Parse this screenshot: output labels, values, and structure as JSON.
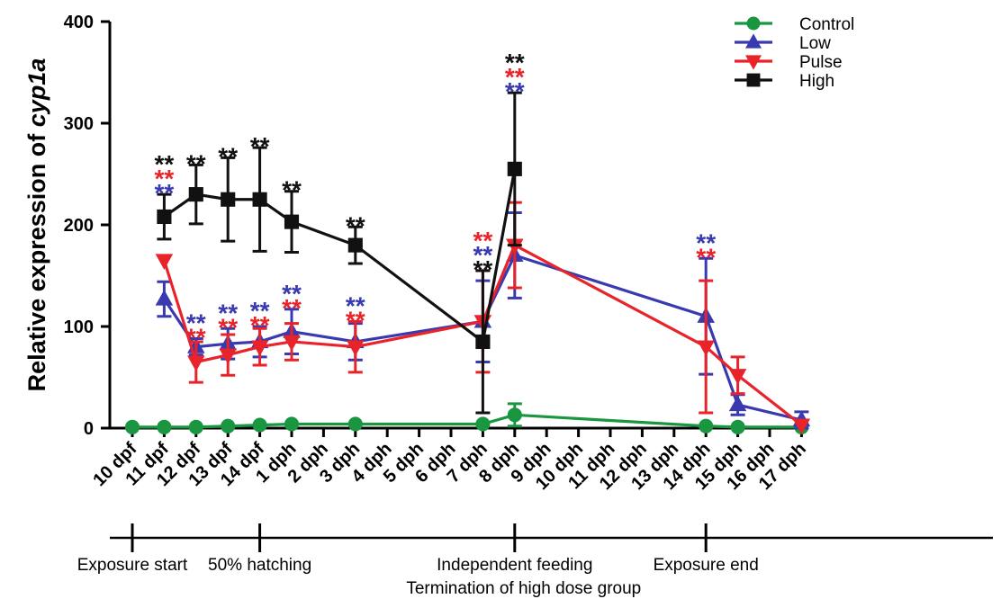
{
  "chart_data": {
    "type": "line",
    "ylabel_prefix": "Relative expression of ",
    "ylabel_gene": "cyp1a",
    "ylim": [
      0,
      400
    ],
    "yticks": [
      "0",
      "100",
      "200",
      "300",
      "400"
    ],
    "categories": [
      "10 dpf",
      "11 dpf",
      "12 dpf",
      "13 dpf",
      "14 dpf",
      "1 dph",
      "2 dph",
      "3 dph",
      "4 dph",
      "5 dph",
      "6 dph",
      "7 dph",
      "8 dph",
      "9 dph",
      "10 dph",
      "11 dph",
      "12 dph",
      "13 dph",
      "14 dph",
      "15 dph",
      "16 dph",
      "17 dph"
    ],
    "legend_position": "top-right",
    "series": [
      {
        "name": "Control",
        "color": "#1a9641",
        "marker": "circle",
        "points": [
          [
            0,
            1,
            0
          ],
          [
            1,
            1,
            0
          ],
          [
            2,
            1,
            0
          ],
          [
            3,
            2,
            0
          ],
          [
            4,
            3,
            0
          ],
          [
            5,
            4,
            0
          ],
          [
            7,
            4,
            0
          ],
          [
            11,
            4,
            0
          ],
          [
            12,
            13,
            11
          ],
          [
            18,
            2,
            0
          ],
          [
            19,
            1,
            0
          ],
          [
            21,
            1,
            0
          ]
        ]
      },
      {
        "name": "Low",
        "color": "#3a3ab0",
        "marker": "triangle-up",
        "points": [
          [
            1,
            127,
            17
          ],
          [
            2,
            80,
            8
          ],
          [
            3,
            83,
            15
          ],
          [
            4,
            85,
            15
          ],
          [
            5,
            95,
            22
          ],
          [
            7,
            85,
            18
          ],
          [
            11,
            105,
            40
          ],
          [
            12,
            170,
            42
          ],
          [
            18,
            110,
            57
          ],
          [
            19,
            23,
            10
          ],
          [
            21,
            8,
            8
          ]
        ]
      },
      {
        "name": "Pulse",
        "color": "#e8232a",
        "marker": "triangle-down",
        "points": [
          [
            1,
            165,
            0
          ],
          [
            2,
            65,
            20
          ],
          [
            3,
            72,
            20
          ],
          [
            4,
            80,
            18
          ],
          [
            5,
            85,
            18
          ],
          [
            7,
            80,
            25
          ],
          [
            11,
            105,
            50
          ],
          [
            12,
            180,
            42
          ],
          [
            18,
            80,
            65
          ],
          [
            19,
            52,
            18
          ],
          [
            21,
            3,
            0
          ]
        ]
      },
      {
        "name": "High",
        "color": "#111111",
        "marker": "square",
        "points": [
          [
            1,
            208,
            22
          ],
          [
            2,
            230,
            29
          ],
          [
            3,
            225,
            41
          ],
          [
            4,
            225,
            51
          ],
          [
            5,
            203,
            30
          ],
          [
            7,
            180,
            18
          ],
          [
            11,
            85,
            70
          ],
          [
            12,
            255,
            75
          ]
        ]
      }
    ],
    "annotations": [
      {
        "x": 1,
        "stars": [
          [
            "**",
            "#111111"
          ],
          [
            "**",
            "#e8232a"
          ],
          [
            "**",
            "#3a3ab0"
          ]
        ]
      },
      {
        "x": 2,
        "stars": [
          [
            "**",
            "#111111"
          ]
        ]
      },
      {
        "x": 3,
        "stars": [
          [
            "**",
            "#111111"
          ]
        ]
      },
      {
        "x": 4,
        "stars": [
          [
            "**",
            "#111111"
          ]
        ]
      },
      {
        "x": 5,
        "stars": [
          [
            "**",
            "#111111"
          ]
        ]
      },
      {
        "x": 7,
        "stars": [
          [
            "**",
            "#111111"
          ]
        ]
      },
      {
        "x": 12,
        "stars": [
          [
            "**",
            "#111111"
          ],
          [
            "**",
            "#e8232a"
          ],
          [
            "**",
            "#3a3ab0"
          ]
        ]
      },
      {
        "x": 11,
        "stars": [
          [
            "**",
            "#e8232a"
          ],
          [
            "**",
            "#3a3ab0"
          ],
          [
            "**",
            "#111111"
          ]
        ]
      },
      {
        "x": 2,
        "low": true,
        "stars": [
          [
            "**",
            "#3a3ab0"
          ],
          [
            "**",
            "#e8232a"
          ]
        ]
      },
      {
        "x": 3,
        "low": true,
        "stars": [
          [
            "**",
            "#3a3ab0"
          ],
          [
            "**",
            "#e8232a"
          ]
        ]
      },
      {
        "x": 4,
        "low": true,
        "stars": [
          [
            "**",
            "#3a3ab0"
          ],
          [
            "**",
            "#e8232a"
          ]
        ]
      },
      {
        "x": 5,
        "low": true,
        "stars": [
          [
            "**",
            "#3a3ab0"
          ],
          [
            "**",
            "#e8232a"
          ]
        ]
      },
      {
        "x": 7,
        "low": true,
        "stars": [
          [
            "**",
            "#3a3ab0"
          ],
          [
            "**",
            "#e8232a"
          ]
        ]
      },
      {
        "x": 18,
        "stars": [
          [
            "**",
            "#3a3ab0"
          ],
          [
            "**",
            "#e8232a"
          ]
        ]
      }
    ],
    "timeline": [
      {
        "x": 0,
        "text": "Exposure start"
      },
      {
        "x": 4,
        "text": "50% hatching"
      },
      {
        "x": 12,
        "text": "Independent feeding",
        "text2": "Termination of high dose group"
      },
      {
        "x": 18,
        "text": "Exposure end"
      }
    ]
  }
}
